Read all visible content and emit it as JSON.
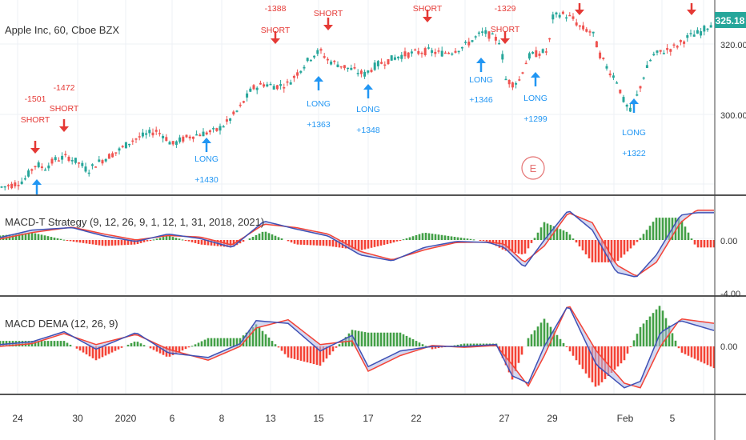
{
  "title": "Apple Inc, 60, Cboe BZX",
  "last_price": "325.18",
  "colors": {
    "up": "#26a69a",
    "down": "#ef5350",
    "long": "#2196f3",
    "short": "#e53935",
    "macd_line": "#3f51b5",
    "signal_line": "#f44336",
    "hist_pos": "#43a047",
    "hist_neg": "#f44336",
    "fill": "#b3b9e6",
    "price_badge": "#26a69a",
    "earnings": "#e57373"
  },
  "price_axis": {
    "ticks": [
      "320.00",
      "300.00"
    ]
  },
  "indicator1": {
    "title": "MACD-T Strategy (9, 12, 26, 9, 1, 12, 1, 31, 2018, 2021)",
    "ticks": [
      "0.00",
      "-4.00"
    ]
  },
  "indicator2": {
    "title": "MACD DEMA (12, 26, 9)",
    "ticks": [
      "0.00"
    ]
  },
  "x_axis": {
    "labels": [
      "24",
      "30",
      "2020",
      "6",
      "8",
      "13",
      "15",
      "17",
      "22",
      "27",
      "29",
      "Feb",
      "5"
    ]
  },
  "earnings_marker": "E",
  "chart_data": {
    "type": "candlestick",
    "title": "Apple Inc, 60, Cboe BZX",
    "ylim": [
      287,
      327
    ],
    "price_path": [
      [
        0,
        288
      ],
      [
        15,
        288.5
      ],
      [
        30,
        289.5
      ],
      [
        45,
        293
      ],
      [
        55,
        292
      ],
      [
        70,
        294
      ],
      [
        85,
        294.5
      ],
      [
        100,
        293
      ],
      [
        110,
        291.5
      ],
      [
        120,
        293
      ],
      [
        135,
        294.5
      ],
      [
        150,
        296
      ],
      [
        165,
        298
      ],
      [
        180,
        299
      ],
      [
        195,
        300
      ],
      [
        205,
        299
      ],
      [
        215,
        297
      ],
      [
        225,
        298
      ],
      [
        240,
        299
      ],
      [
        255,
        299.5
      ],
      [
        270,
        300
      ],
      [
        285,
        302
      ],
      [
        300,
        305
      ],
      [
        315,
        309
      ],
      [
        330,
        310
      ],
      [
        345,
        309.5
      ],
      [
        360,
        310
      ],
      [
        375,
        313
      ],
      [
        390,
        316
      ],
      [
        400,
        317
      ],
      [
        410,
        315
      ],
      [
        425,
        314
      ],
      [
        440,
        313
      ],
      [
        455,
        312
      ],
      [
        470,
        314
      ],
      [
        485,
        315
      ],
      [
        500,
        316
      ],
      [
        515,
        316.5
      ],
      [
        535,
        317
      ],
      [
        550,
        316.5
      ],
      [
        565,
        317
      ],
      [
        580,
        318
      ],
      [
        595,
        320
      ],
      [
        605,
        321
      ],
      [
        615,
        320
      ],
      [
        625,
        319
      ],
      [
        632,
        311
      ],
      [
        640,
        310
      ],
      [
        650,
        311
      ],
      [
        655,
        314
      ],
      [
        662,
        316
      ],
      [
        672,
        316.5
      ],
      [
        685,
        317
      ],
      [
        690,
        324
      ],
      [
        700,
        325
      ],
      [
        715,
        324
      ],
      [
        725,
        322
      ],
      [
        740,
        321
      ],
      [
        750,
        316
      ],
      [
        760,
        313
      ],
      [
        770,
        311
      ],
      [
        780,
        306
      ],
      [
        788,
        304
      ],
      [
        795,
        307
      ],
      [
        805,
        312
      ],
      [
        815,
        316
      ],
      [
        830,
        317
      ],
      [
        845,
        318
      ],
      [
        860,
        320
      ],
      [
        875,
        321
      ],
      [
        890,
        323
      ]
    ],
    "signals": [
      {
        "type": "short",
        "label": "SHORT",
        "value": "-1501"
      },
      {
        "type": "short",
        "label": "SHORT",
        "value": "-1472"
      },
      {
        "type": "long",
        "label": "LONG",
        "value": "+1430"
      },
      {
        "type": "short",
        "label": "SHORT",
        "value": "-1388"
      },
      {
        "type": "short",
        "label": "SHORT"
      },
      {
        "type": "long",
        "label": "LONG",
        "value": "+1363"
      },
      {
        "type": "long",
        "label": "LONG",
        "value": "+1348"
      },
      {
        "type": "short",
        "label": "SHORT"
      },
      {
        "type": "long",
        "label": "LONG",
        "value": "+1346"
      },
      {
        "type": "short",
        "label": "SHORT",
        "value": "-1329"
      },
      {
        "type": "long",
        "label": "LONG",
        "value": "+1299"
      },
      {
        "type": "long",
        "label": "LONG",
        "value": "+1322"
      }
    ],
    "macd_t": {
      "macd": [
        [
          0,
          0.5
        ],
        [
          40,
          2
        ],
        [
          90,
          2.5
        ],
        [
          130,
          0.8
        ],
        [
          170,
          -0.3
        ],
        [
          210,
          1.2
        ],
        [
          250,
          0.3
        ],
        [
          290,
          -1.5
        ],
        [
          330,
          3.8
        ],
        [
          370,
          2.2
        ],
        [
          410,
          0.8
        ],
        [
          450,
          -3
        ],
        [
          490,
          -4.2
        ],
        [
          530,
          -1.5
        ],
        [
          570,
          -0.3
        ],
        [
          610,
          -0.5
        ],
        [
          630,
          -1.5
        ],
        [
          655,
          -5.5
        ],
        [
          680,
          0
        ],
        [
          710,
          6
        ],
        [
          740,
          2
        ],
        [
          770,
          -6.5
        ],
        [
          795,
          -7.5
        ],
        [
          820,
          -3
        ],
        [
          850,
          5
        ],
        [
          870,
          5.5
        ],
        [
          893,
          5.5
        ]
      ],
      "signal": [
        [
          0,
          0.2
        ],
        [
          40,
          1.5
        ],
        [
          90,
          2.6
        ],
        [
          130,
          1.2
        ],
        [
          170,
          0
        ],
        [
          210,
          0.9
        ],
        [
          250,
          0.6
        ],
        [
          290,
          -1
        ],
        [
          330,
          3.2
        ],
        [
          370,
          2.5
        ],
        [
          410,
          1.2
        ],
        [
          450,
          -2.3
        ],
        [
          490,
          -4
        ],
        [
          530,
          -2
        ],
        [
          570,
          -0.5
        ],
        [
          610,
          -0.4
        ],
        [
          630,
          -0.8
        ],
        [
          655,
          -4.5
        ],
        [
          680,
          -1.2
        ],
        [
          710,
          5.5
        ],
        [
          740,
          3.5
        ],
        [
          770,
          -5
        ],
        [
          795,
          -7.3
        ],
        [
          820,
          -4.5
        ],
        [
          850,
          3.5
        ],
        [
          870,
          6
        ],
        [
          893,
          6
        ]
      ]
    },
    "macd_dema": {
      "macd": [
        [
          0,
          0.2
        ],
        [
          40,
          0.5
        ],
        [
          80,
          1.6
        ],
        [
          120,
          -0.3
        ],
        [
          170,
          1.5
        ],
        [
          210,
          -0.7
        ],
        [
          260,
          -1.2
        ],
        [
          300,
          0.3
        ],
        [
          320,
          2.8
        ],
        [
          360,
          2.5
        ],
        [
          400,
          -0.5
        ],
        [
          440,
          1.2
        ],
        [
          460,
          -2.2
        ],
        [
          500,
          -0.5
        ],
        [
          540,
          0
        ],
        [
          580,
          0
        ],
        [
          620,
          0.2
        ],
        [
          640,
          -3.2
        ],
        [
          660,
          -4
        ],
        [
          680,
          0
        ],
        [
          710,
          4.5
        ],
        [
          745,
          -2
        ],
        [
          780,
          -4.5
        ],
        [
          800,
          -3.8
        ],
        [
          825,
          1.5
        ],
        [
          850,
          2.8
        ],
        [
          893,
          1.7
        ]
      ],
      "signal": [
        [
          0,
          0
        ],
        [
          40,
          0.3
        ],
        [
          80,
          1.4
        ],
        [
          120,
          0.2
        ],
        [
          170,
          1.3
        ],
        [
          210,
          -0.3
        ],
        [
          260,
          -1.5
        ],
        [
          300,
          0
        ],
        [
          320,
          2
        ],
        [
          360,
          2.9
        ],
        [
          400,
          0.2
        ],
        [
          440,
          0.6
        ],
        [
          460,
          -2.7
        ],
        [
          500,
          -1
        ],
        [
          540,
          0.1
        ],
        [
          580,
          -0.1
        ],
        [
          620,
          0.1
        ],
        [
          640,
          -2
        ],
        [
          660,
          -4.3
        ],
        [
          680,
          -1
        ],
        [
          710,
          4.6
        ],
        [
          745,
          -0.5
        ],
        [
          780,
          -4
        ],
        [
          800,
          -4.5
        ],
        [
          825,
          0
        ],
        [
          850,
          3
        ],
        [
          893,
          2.5
        ]
      ]
    }
  }
}
